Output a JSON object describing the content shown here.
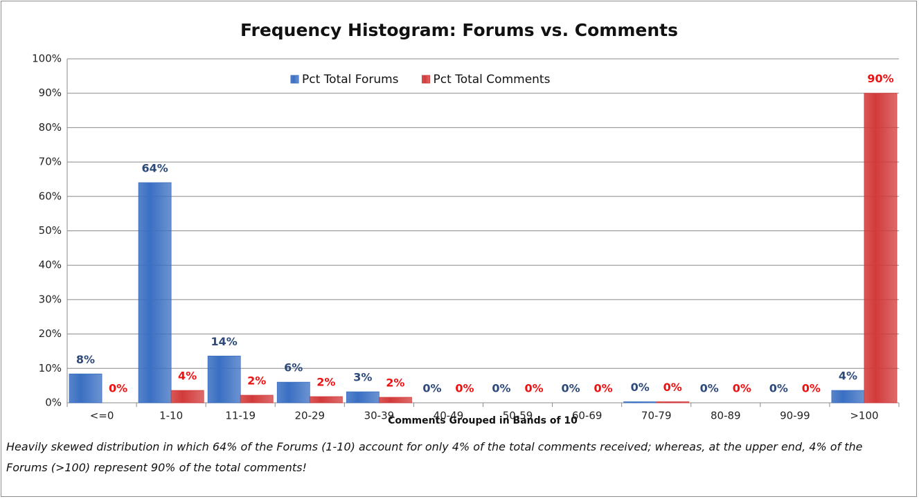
{
  "chart_data": {
    "type": "bar",
    "title": "Frequency Histogram: Forums vs. Comments",
    "x_label": "Comments Grouped in Bands of 10",
    "caption": "Heavily skewed distribution in which 64% of the Forums (1-10) account for only 4% of the total comments received; whereas, at the upper end, 4% of the Forums (>100) represent 90% of the total comments!",
    "categories": [
      "<=0",
      "1-10",
      "11-19",
      "20-29",
      "30-39",
      "40-49",
      "50-59",
      "60-69",
      "70-79",
      "80-89",
      "90-99",
      ">100"
    ],
    "series": [
      {
        "name": "Pct Total Forums",
        "color": "#3a6fc2",
        "label_color": "#2e4a7a",
        "values": [
          8.4,
          64,
          13.6,
          6,
          3.2,
          0,
          0,
          0,
          0.3,
          0,
          0,
          3.6
        ],
        "value_labels": [
          "8%",
          "64%",
          "14%",
          "6%",
          "3%",
          "0%",
          "0%",
          "0%",
          "0%",
          "0%",
          "0%",
          "4%"
        ]
      },
      {
        "name": "Pct Total Comments",
        "color": "#d23a3a",
        "label_color": "#ee1111",
        "values": [
          0,
          3.6,
          2.2,
          1.8,
          1.6,
          0,
          0,
          0,
          0.3,
          0,
          0,
          90
        ],
        "value_labels": [
          "0%",
          "4%",
          "2%",
          "2%",
          "2%",
          "0%",
          "0%",
          "0%",
          "0%",
          "0%",
          "0%",
          "90%"
        ]
      }
    ],
    "ylim": [
      0,
      100
    ],
    "yticks": [
      {
        "value": 0,
        "label": "0%"
      },
      {
        "value": 10,
        "label": "10%"
      },
      {
        "value": 20,
        "label": "20%"
      },
      {
        "value": 30,
        "label": "30%"
      },
      {
        "value": 40,
        "label": "40%"
      },
      {
        "value": 50,
        "label": "50%"
      },
      {
        "value": 60,
        "label": "60%"
      },
      {
        "value": 70,
        "label": "70%"
      },
      {
        "value": 80,
        "label": "80%"
      },
      {
        "value": 90,
        "label": "90%"
      },
      {
        "value": 100,
        "label": "100%"
      }
    ],
    "grid": true
  }
}
